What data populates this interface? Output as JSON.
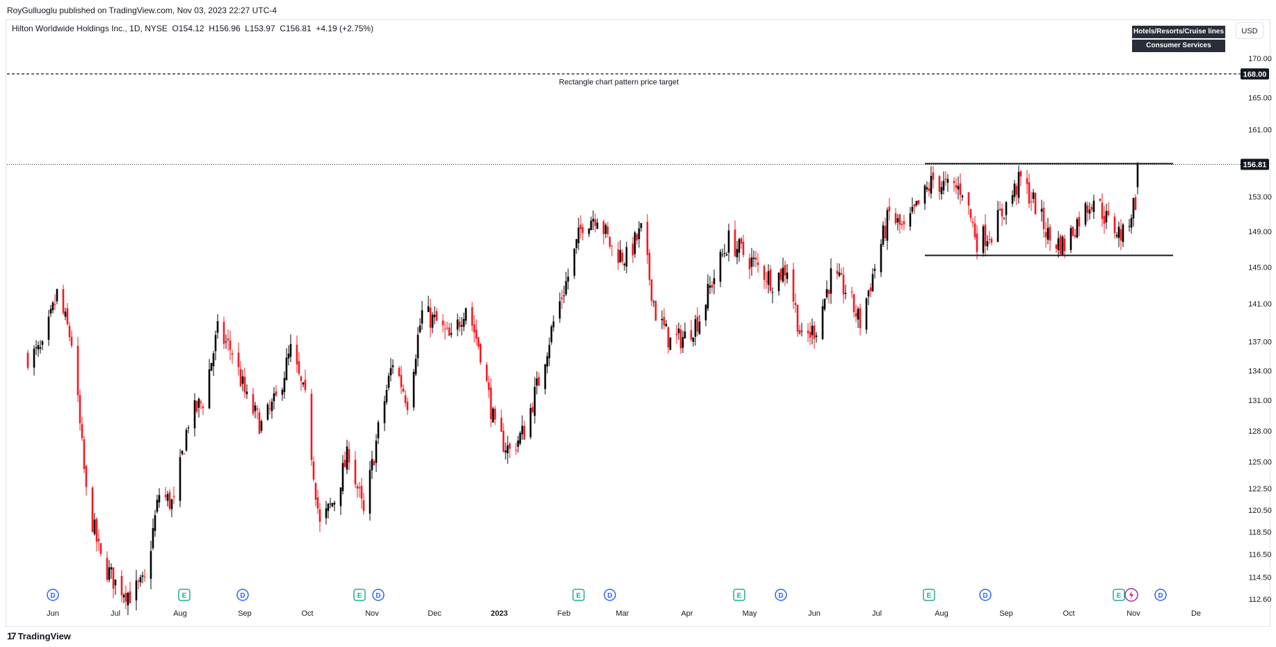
{
  "publisher_line": "RoyGulluoglu published on TradingView.com, Nov 03, 2023 22:27 UTC-4",
  "symbol_line": "Hilton Worldwide Holdings Inc., 1D, NYSE  O154.12  H156.96  L153.97  C156.81  +4.19 (+2.75%)",
  "badges": {
    "industry": "Hotels/Resorts/Cruise lines",
    "sector": "Consumer Services"
  },
  "currency": "USD",
  "footer_logo": "TradingView",
  "footer_mark": "17",
  "colors": {
    "up": "#000000",
    "down": "#f7161f",
    "earnings": "#22ab94",
    "dividend": "#2962ff",
    "split": "#9c27b0"
  },
  "chart_data": {
    "type": "candlestick",
    "title": "",
    "x_tick_labels": [
      "Jun",
      "Jul",
      "Aug",
      "Sep",
      "Oct",
      "Nov",
      "Dec",
      "2023",
      "Feb",
      "Mar",
      "Apr",
      "May",
      "Jun",
      "Jul",
      "Aug",
      "Sep",
      "Oct",
      "Nov",
      "De"
    ],
    "y_tick_labels": [
      "170.00",
      "165.00",
      "161.00",
      "153.00",
      "149.00",
      "145.00",
      "141.00",
      "137.00",
      "134.00",
      "131.00",
      "128.00",
      "125.00",
      "122.50",
      "120.50",
      "118.50",
      "116.50",
      "114.50",
      "112.60"
    ],
    "y_scale": "log",
    "ylim": [
      112.2,
      172.5
    ],
    "last_price": 156.81,
    "last_price_label": "156.81",
    "target_price": 168.0,
    "target_price_label": "168.00",
    "annotation": "Rectangle chart pattern price target",
    "rectangle": {
      "top": 156.9,
      "bottom": 146.3,
      "start": "Jul 24, 2023",
      "end": "Nov 20, 2023"
    },
    "anchors": [
      {
        "date": "May 20, 2022",
        "price": 135.5
      },
      {
        "date": "May 27, 2022",
        "price": 136
      },
      {
        "date": "Jun 3, 2022",
        "price": 142
      },
      {
        "date": "Jun 10, 2022",
        "price": 137
      },
      {
        "date": "Jun 17, 2022",
        "price": 122
      },
      {
        "date": "Jun 24, 2022",
        "price": 116
      },
      {
        "date": "Jul 1, 2022",
        "price": 114
      },
      {
        "date": "Jul 8, 2022",
        "price": 113
      },
      {
        "date": "Jul 15, 2022",
        "price": 114
      },
      {
        "date": "Jul 22, 2022",
        "price": 122
      },
      {
        "date": "Jul 29, 2022",
        "price": 121
      },
      {
        "date": "Aug 5, 2022",
        "price": 129
      },
      {
        "date": "Aug 12, 2022",
        "price": 131
      },
      {
        "date": "Aug 19, 2022",
        "price": 138
      },
      {
        "date": "Aug 26, 2022",
        "price": 136
      },
      {
        "date": "Sep 2, 2022",
        "price": 131
      },
      {
        "date": "Sep 9, 2022",
        "price": 128.5
      },
      {
        "date": "Sep 16, 2022",
        "price": 131
      },
      {
        "date": "Sep 23, 2022",
        "price": 136
      },
      {
        "date": "Sep 30, 2022",
        "price": 131
      },
      {
        "date": "Oct 7, 2022",
        "price": 119
      },
      {
        "date": "Oct 14, 2022",
        "price": 121.5
      },
      {
        "date": "Oct 21, 2022",
        "price": 126
      },
      {
        "date": "Oct 28, 2022",
        "price": 120
      },
      {
        "date": "Nov 4, 2022",
        "price": 128
      },
      {
        "date": "Nov 11, 2022",
        "price": 135
      },
      {
        "date": "Nov 18, 2022",
        "price": 131
      },
      {
        "date": "Nov 25, 2022",
        "price": 140
      },
      {
        "date": "Dec 2, 2022",
        "price": 139
      },
      {
        "date": "Dec 9, 2022",
        "price": 137
      },
      {
        "date": "Dec 16, 2022",
        "price": 141
      },
      {
        "date": "Dec 23, 2022",
        "price": 136
      },
      {
        "date": "Dec 30, 2022",
        "price": 128
      },
      {
        "date": "Jan 6, 2023",
        "price": 126
      },
      {
        "date": "Jan 13, 2023",
        "price": 128
      },
      {
        "date": "Jan 20, 2023",
        "price": 133
      },
      {
        "date": "Jan 27, 2023",
        "price": 139
      },
      {
        "date": "Feb 3, 2023",
        "price": 144
      },
      {
        "date": "Feb 10, 2023",
        "price": 150
      },
      {
        "date": "Feb 17, 2023",
        "price": 151
      },
      {
        "date": "Feb 24, 2023",
        "price": 147
      },
      {
        "date": "Mar 3, 2023",
        "price": 146
      },
      {
        "date": "Mar 10, 2023",
        "price": 149
      },
      {
        "date": "Mar 17, 2023",
        "price": 140
      },
      {
        "date": "Mar 24, 2023",
        "price": 137
      },
      {
        "date": "Mar 31, 2023",
        "price": 137.5
      },
      {
        "date": "Apr 7, 2023",
        "price": 139.5
      },
      {
        "date": "Apr 14, 2023",
        "price": 144
      },
      {
        "date": "Apr 21, 2023",
        "price": 148
      },
      {
        "date": "Apr 28, 2023",
        "price": 146.5
      },
      {
        "date": "May 5, 2023",
        "price": 145
      },
      {
        "date": "May 12, 2023",
        "price": 143.5
      },
      {
        "date": "May 19, 2023",
        "price": 145
      },
      {
        "date": "May 26, 2023",
        "price": 137
      },
      {
        "date": "Jun 2, 2023",
        "price": 138.5
      },
      {
        "date": "Jun 9, 2023",
        "price": 144
      },
      {
        "date": "Jun 16, 2023",
        "price": 142.5
      },
      {
        "date": "Jun 23, 2023",
        "price": 139
      },
      {
        "date": "Jun 30, 2023",
        "price": 145
      },
      {
        "date": "Jul 7, 2023",
        "price": 151
      },
      {
        "date": "Jul 14, 2023",
        "price": 149
      },
      {
        "date": "Jul 21, 2023",
        "price": 152
      },
      {
        "date": "Jul 28, 2023",
        "price": 155
      },
      {
        "date": "Aug 4, 2023",
        "price": 154
      },
      {
        "date": "Aug 11, 2023",
        "price": 154
      },
      {
        "date": "Aug 18, 2023",
        "price": 148
      },
      {
        "date": "Aug 25, 2023",
        "price": 149
      },
      {
        "date": "Sep 1, 2023",
        "price": 152
      },
      {
        "date": "Sep 8, 2023",
        "price": 155
      },
      {
        "date": "Sep 15, 2023",
        "price": 152
      },
      {
        "date": "Sep 22, 2023",
        "price": 148
      },
      {
        "date": "Sep 29, 2023",
        "price": 147.5
      },
      {
        "date": "Oct 6, 2023",
        "price": 150.5
      },
      {
        "date": "Oct 13, 2023",
        "price": 153
      },
      {
        "date": "Oct 20, 2023",
        "price": 150
      },
      {
        "date": "Oct 27, 2023",
        "price": 148.5
      },
      {
        "date": "Nov 1, 2023",
        "price": 152
      },
      {
        "date": "Nov 2, 2023",
        "price": 152.62
      },
      {
        "date": "Nov 3, 2023",
        "price": 156.81
      }
    ],
    "events": [
      {
        "date": "Jun 1, 2022",
        "kind": "D"
      },
      {
        "date": "Aug 3, 2022",
        "kind": "E"
      },
      {
        "date": "Aug 31, 2022",
        "kind": "D"
      },
      {
        "date": "Oct 26, 2022",
        "kind": "E"
      },
      {
        "date": "Nov 4, 2022",
        "kind": "D"
      },
      {
        "date": "Feb 8, 2023",
        "kind": "E"
      },
      {
        "date": "Feb 23, 2023",
        "kind": "D"
      },
      {
        "date": "Apr 26, 2023",
        "kind": "E"
      },
      {
        "date": "May 16, 2023",
        "kind": "D"
      },
      {
        "date": "Jul 26, 2023",
        "kind": "E"
      },
      {
        "date": "Aug 22, 2023",
        "kind": "D"
      },
      {
        "date": "Oct 25, 2023",
        "kind": "E"
      },
      {
        "date": "Oct 31, 2023",
        "kind": "S"
      },
      {
        "date": "Nov 14, 2023",
        "kind": "D"
      }
    ]
  }
}
